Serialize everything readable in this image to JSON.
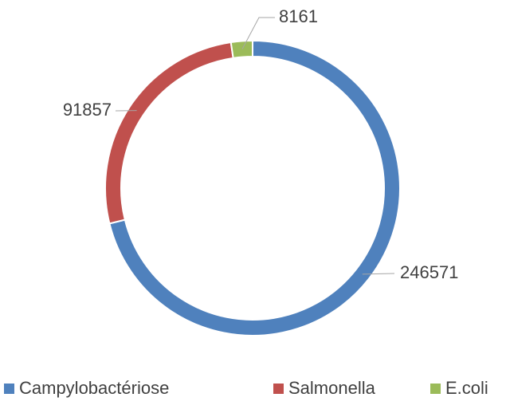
{
  "chart_data": {
    "type": "donut",
    "categories": [
      "Campylobactériose",
      "Salmonella",
      "E.coli"
    ],
    "values": [
      246571,
      91857,
      8161
    ],
    "colors": [
      "#4f81bd",
      "#c0504d",
      "#9bbb59"
    ],
    "legend": "bottom"
  }
}
